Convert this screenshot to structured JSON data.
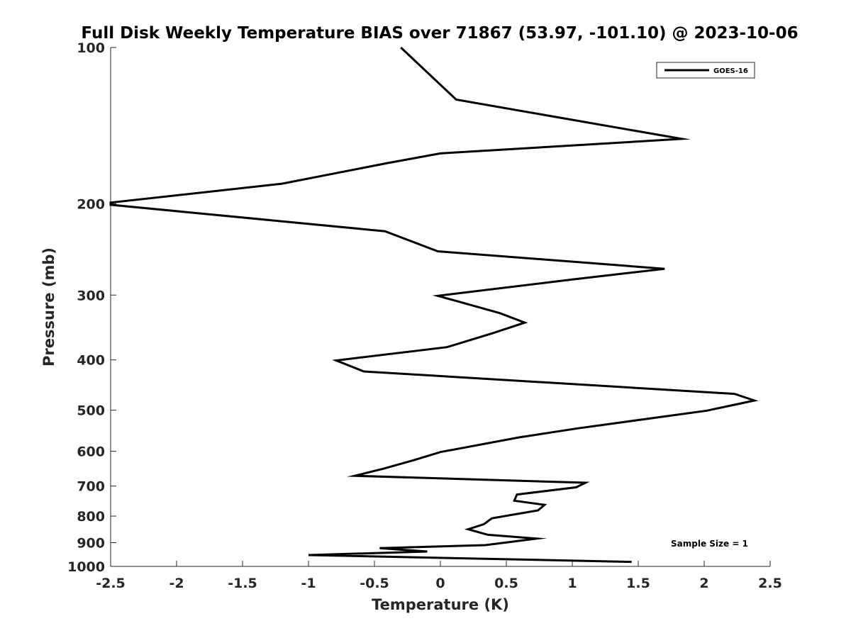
{
  "chart_data": {
    "type": "line",
    "title": "Full Disk Weekly Temperature BIAS over 71867 (53.97, -101.10) @ 2023-10-06",
    "xlabel": "Temperature (K)",
    "ylabel": "Pressure (mb)",
    "xlim": [
      -2.5,
      2.5
    ],
    "ylim": [
      100,
      1000
    ],
    "y_scale": "log",
    "y_reversed": true,
    "grid": false,
    "legend_position": "top-right",
    "x_ticks": [
      -2.5,
      -2,
      -1.5,
      -1,
      -0.5,
      0,
      0.5,
      1,
      1.5,
      2,
      2.5
    ],
    "x_tick_labels": [
      "-2.5",
      "-2",
      "-1.5",
      "-1",
      "-0.5",
      "0",
      "0.5",
      "1",
      "1.5",
      "2",
      "2.5"
    ],
    "y_ticks": [
      100,
      200,
      300,
      400,
      500,
      600,
      700,
      800,
      900,
      1000
    ],
    "y_tick_labels": [
      "100",
      "200",
      "300",
      "400",
      "500",
      "600",
      "700",
      "800",
      "900",
      "1000"
    ],
    "series": [
      {
        "name": "GOES-16",
        "color": "#000000",
        "points": [
          {
            "x": -0.3,
            "y": 100
          },
          {
            "x": 0.12,
            "y": 126
          },
          {
            "x": 1.83,
            "y": 150
          },
          {
            "x": 0.0,
            "y": 160
          },
          {
            "x": -0.4,
            "y": 167
          },
          {
            "x": -1.2,
            "y": 183
          },
          {
            "x": -2.5,
            "y": 199
          },
          {
            "x": -2.5,
            "y": 201
          },
          {
            "x": -0.42,
            "y": 226
          },
          {
            "x": -0.02,
            "y": 247
          },
          {
            "x": 1.7,
            "y": 267
          },
          {
            "x": 1.0,
            "y": 280
          },
          {
            "x": -0.02,
            "y": 301
          },
          {
            "x": 0.45,
            "y": 325
          },
          {
            "x": 0.64,
            "y": 339
          },
          {
            "x": 0.4,
            "y": 355
          },
          {
            "x": 0.05,
            "y": 378
          },
          {
            "x": -0.79,
            "y": 401
          },
          {
            "x": -0.58,
            "y": 421
          },
          {
            "x": 2.23,
            "y": 465
          },
          {
            "x": 2.38,
            "y": 479
          },
          {
            "x": 2.02,
            "y": 501
          },
          {
            "x": 1.04,
            "y": 542
          },
          {
            "x": 0.6,
            "y": 564
          },
          {
            "x": 0.0,
            "y": 602
          },
          {
            "x": -0.2,
            "y": 624
          },
          {
            "x": -0.43,
            "y": 648
          },
          {
            "x": -0.65,
            "y": 669
          },
          {
            "x": 1.1,
            "y": 690
          },
          {
            "x": 1.03,
            "y": 704
          },
          {
            "x": 0.58,
            "y": 727
          },
          {
            "x": 0.56,
            "y": 747
          },
          {
            "x": 0.79,
            "y": 761
          },
          {
            "x": 0.74,
            "y": 780
          },
          {
            "x": 0.39,
            "y": 808
          },
          {
            "x": 0.33,
            "y": 829
          },
          {
            "x": 0.21,
            "y": 848
          },
          {
            "x": 0.36,
            "y": 869
          },
          {
            "x": 0.73,
            "y": 884
          },
          {
            "x": 0.34,
            "y": 910
          },
          {
            "x": -0.46,
            "y": 922
          },
          {
            "x": -0.1,
            "y": 936
          },
          {
            "x": -1.0,
            "y": 951
          },
          {
            "x": 1.45,
            "y": 980
          }
        ]
      }
    ],
    "annotations": [
      {
        "text": "Sample Size = 1",
        "position": "bottom-right"
      }
    ]
  }
}
